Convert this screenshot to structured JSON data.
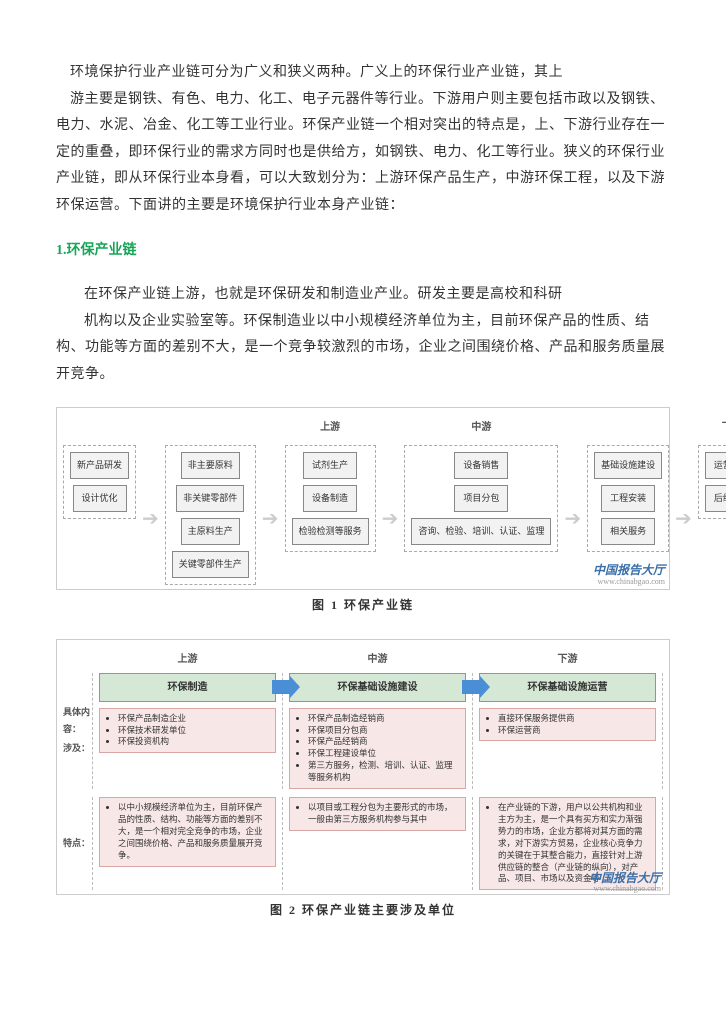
{
  "intro": {
    "first": "环境保护行业产业链可分为广义和狭义两种。广义上的环保行业产业链，其上",
    "rest": "游主要是钢铁、有色、电力、化工、电子元器件等行业。下游用户则主要包括市政以及钢铁、电力、水泥、冶金、化工等工业行业。环保产业链一个相对突出的特点是，上、下游行业存在一定的重叠，即环保行业的需求方同时也是供给方，如钢铁、电力、化工等行业。狭义的环保行业产业链，即从环保行业本身看，可以大致划分为：上游环保产品生产，中游环保工程，以及下游环保运营。下面讲的主要是环境保护行业本身产业链："
  },
  "heading1": "1.环保产业链",
  "para2": {
    "first": "在环保产业链上游，也就是环保研发和制造业产业。研发主要是高校和科研",
    "rest": "机构以及企业实验室等。环保制造业以中小规模经济单位为主，目前环保产品的性质、结构、功能等方面的差别不大，是一个竞争较激烈的市场，企业之间围绕价格、产品和服务质量展开竞争。"
  },
  "fig1": {
    "layout": "flowchart",
    "group_border": "dashed",
    "node_background": "#f2f2f2",
    "node_border": "#888888",
    "arrow_color": "#cccccc",
    "cols": [
      {
        "label": "",
        "items": [
          "新产品研发",
          "设计优化"
        ]
      },
      {
        "label": "",
        "items": [
          "非主要原料",
          "非关键零部件",
          "主原料生产",
          "关键零部件生产"
        ]
      },
      {
        "label": "上游",
        "items": [
          "试剂生产",
          "设备制造",
          "检验检测等服务"
        ]
      },
      {
        "label": "中游",
        "items": [
          "设备销售",
          "项目分包",
          "咨询、检验、培训、认证、监理"
        ]
      },
      {
        "label": "",
        "items": [
          "基础设施建设",
          "工程安装",
          "相关服务"
        ]
      },
      {
        "label": "下游",
        "items": [
          "运营管理",
          "后续服务"
        ]
      }
    ],
    "caption": "图 1 环保产业链"
  },
  "watermark": {
    "title": "中国报告大厅",
    "url": "www.chinabgao.com"
  },
  "fig2": {
    "labels": {
      "content": "具体内容：",
      "involved": "涉及：",
      "trait": "特点："
    },
    "header_background": "#d5e8d5",
    "header_border": "#7aa77a",
    "body_background": "#f7e7e7",
    "body_border": "#d9a6a6",
    "arrow_color": "#4a8fd6",
    "stages": [
      {
        "label": "上游",
        "header": "环保制造",
        "bullets": [
          "环保产品制造企业",
          "环保技术研发单位",
          "环保投资机构"
        ],
        "trait": "以中小规模经济单位为主，目前环保产品的性质、结构、功能等方面的差别不大，是一个相对完全竞争的市场，企业之间围绕价格、产品和服务质量展开竞争。"
      },
      {
        "label": "中游",
        "header": "环保基础设施建设",
        "bullets": [
          "环保产品制造经销商",
          "环保项目分包商",
          "环保产品经销商",
          "环保工程建设单位",
          "第三方服务，检测、培训、认证、监理等服务机构"
        ],
        "trait": "以项目或工程分包为主要形式的市场，一般由第三方服务机构参与其中"
      },
      {
        "label": "下游",
        "header": "环保基础设施运营",
        "bullets": [
          "直接环保服务提供商",
          "环保运营商"
        ],
        "trait": "在产业链的下游，用户以公共机构和业主方为主，是一个具有买方和实力渐强势力的市场，企业方都将对其方面的需求，对下游实方贸易，企业核心竞争力的关键在于其整合能力，直接针对上游供应链的整合（产业链的纵向），对产品、项目、市场以及资金等 ..."
      }
    ],
    "caption": "图 2 环保产业链主要涉及单位"
  }
}
